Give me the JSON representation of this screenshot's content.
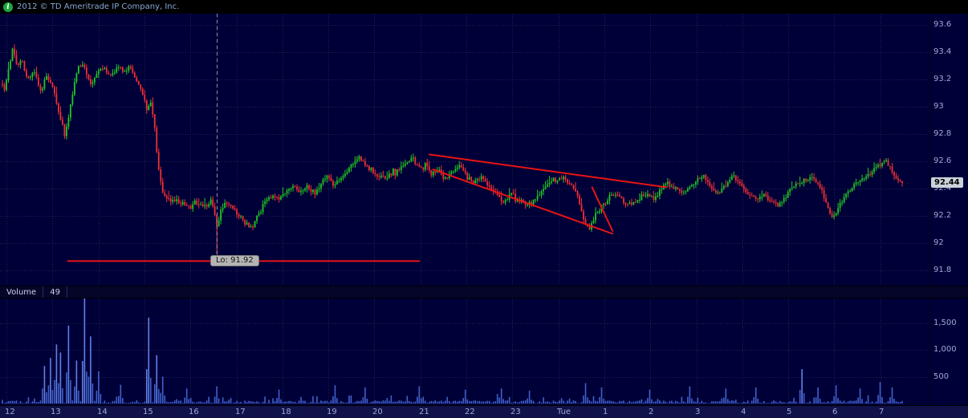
{
  "header": {
    "copyright": "2012 © TD Ameritrade IP Company, Inc.",
    "info_glyph": "i"
  },
  "volume_pane": {
    "label": "Volume",
    "value": 49
  },
  "colors": {
    "background": "#000038",
    "topbar_bg": "#000000",
    "up": "#22c822",
    "down": "#f03030",
    "volume_bar": "#4060cc",
    "volume_bar_bright": "#6080e8",
    "axis_text": "#9fa9d4",
    "grid": "#22224f",
    "drawing_red": "#e61414",
    "marker_dash": "#8890a0",
    "low_badge_bg": "#b4b4b4",
    "last_badge_bg": "#ccd2da",
    "info_green": "#1fa53f"
  },
  "chart_data": {
    "type": "candlestick",
    "title": "",
    "x_axis_labels": [
      "12",
      "13",
      "14",
      "15",
      "16",
      "17",
      "18",
      "19",
      "20",
      "21",
      "22",
      "23",
      "Tue",
      "1",
      "2",
      "3",
      "4",
      "5",
      "6",
      "7"
    ],
    "y_axis": {
      "ticks": [
        {
          "label": "93.6",
          "value": 93.6
        },
        {
          "label": "93.4",
          "value": 93.4
        },
        {
          "label": "93.2",
          "value": 93.2
        },
        {
          "label": "93",
          "value": 93.0
        },
        {
          "label": "92.8",
          "value": 92.8
        },
        {
          "label": "92.6",
          "value": 92.6
        },
        {
          "label": "92.4",
          "value": 92.4
        },
        {
          "label": "92.2",
          "value": 92.2
        },
        {
          "label": "92",
          "value": 92.0
        },
        {
          "label": "91.8",
          "value": 91.8
        }
      ],
      "range": [
        91.69,
        93.68
      ]
    },
    "volume_axis": {
      "ticks": [
        {
          "label": "1,500",
          "value": 1500
        },
        {
          "label": "1,000",
          "value": 1000
        },
        {
          "label": "500",
          "value": 500
        }
      ]
    },
    "last_price": 92.44,
    "last_volume": 49,
    "session_low": 91.92,
    "candle_count": 450,
    "price_anchors": [
      [
        0.0,
        93.22
      ],
      [
        0.005,
        93.12
      ],
      [
        0.01,
        93.3
      ],
      [
        0.014,
        93.44
      ],
      [
        0.018,
        93.3
      ],
      [
        0.023,
        93.34
      ],
      [
        0.03,
        93.2
      ],
      [
        0.037,
        93.26
      ],
      [
        0.043,
        93.12
      ],
      [
        0.05,
        93.22
      ],
      [
        0.057,
        93.14
      ],
      [
        0.063,
        92.96
      ],
      [
        0.07,
        92.78
      ],
      [
        0.076,
        93.02
      ],
      [
        0.083,
        93.28
      ],
      [
        0.09,
        93.3
      ],
      [
        0.097,
        93.16
      ],
      [
        0.104,
        93.24
      ],
      [
        0.112,
        93.28
      ],
      [
        0.12,
        93.22
      ],
      [
        0.127,
        93.3
      ],
      [
        0.134,
        93.24
      ],
      [
        0.14,
        93.3
      ],
      [
        0.147,
        93.18
      ],
      [
        0.153,
        93.1
      ],
      [
        0.158,
        92.98
      ],
      [
        0.162,
        93.04
      ],
      [
        0.166,
        92.88
      ],
      [
        0.17,
        92.56
      ],
      [
        0.175,
        92.38
      ],
      [
        0.181,
        92.3
      ],
      [
        0.19,
        92.32
      ],
      [
        0.2,
        92.26
      ],
      [
        0.21,
        92.3
      ],
      [
        0.22,
        92.27
      ],
      [
        0.228,
        92.3
      ],
      [
        0.234,
        92.1
      ],
      [
        0.238,
        92.26
      ],
      [
        0.245,
        92.3
      ],
      [
        0.252,
        92.26
      ],
      [
        0.258,
        92.18
      ],
      [
        0.265,
        92.14
      ],
      [
        0.272,
        92.12
      ],
      [
        0.278,
        92.22
      ],
      [
        0.285,
        92.3
      ],
      [
        0.292,
        92.34
      ],
      [
        0.3,
        92.32
      ],
      [
        0.308,
        92.38
      ],
      [
        0.315,
        92.42
      ],
      [
        0.322,
        92.36
      ],
      [
        0.33,
        92.42
      ],
      [
        0.337,
        92.36
      ],
      [
        0.344,
        92.42
      ],
      [
        0.352,
        92.5
      ],
      [
        0.358,
        92.42
      ],
      [
        0.365,
        92.46
      ],
      [
        0.372,
        92.52
      ],
      [
        0.38,
        92.58
      ],
      [
        0.388,
        92.62
      ],
      [
        0.395,
        92.56
      ],
      [
        0.403,
        92.5
      ],
      [
        0.412,
        92.48
      ],
      [
        0.42,
        92.5
      ],
      [
        0.428,
        92.54
      ],
      [
        0.436,
        92.58
      ],
      [
        0.444,
        92.62
      ],
      [
        0.452,
        92.54
      ],
      [
        0.458,
        92.58
      ],
      [
        0.464,
        92.5
      ],
      [
        0.472,
        92.54
      ],
      [
        0.478,
        92.46
      ],
      [
        0.486,
        92.52
      ],
      [
        0.494,
        92.56
      ],
      [
        0.502,
        92.5
      ],
      [
        0.51,
        92.44
      ],
      [
        0.518,
        92.48
      ],
      [
        0.526,
        92.42
      ],
      [
        0.534,
        92.36
      ],
      [
        0.542,
        92.3
      ],
      [
        0.55,
        92.36
      ],
      [
        0.558,
        92.32
      ],
      [
        0.566,
        92.28
      ],
      [
        0.574,
        92.3
      ],
      [
        0.582,
        92.38
      ],
      [
        0.59,
        92.44
      ],
      [
        0.598,
        92.46
      ],
      [
        0.606,
        92.48
      ],
      [
        0.612,
        92.44
      ],
      [
        0.618,
        92.4
      ],
      [
        0.624,
        92.28
      ],
      [
        0.629,
        92.16
      ],
      [
        0.634,
        92.11
      ],
      [
        0.64,
        92.2
      ],
      [
        0.648,
        92.28
      ],
      [
        0.656,
        92.34
      ],
      [
        0.664,
        92.36
      ],
      [
        0.672,
        92.3
      ],
      [
        0.68,
        92.28
      ],
      [
        0.688,
        92.34
      ],
      [
        0.696,
        92.36
      ],
      [
        0.704,
        92.32
      ],
      [
        0.712,
        92.4
      ],
      [
        0.718,
        92.46
      ],
      [
        0.726,
        92.4
      ],
      [
        0.734,
        92.36
      ],
      [
        0.742,
        92.4
      ],
      [
        0.75,
        92.46
      ],
      [
        0.757,
        92.5
      ],
      [
        0.764,
        92.42
      ],
      [
        0.772,
        92.36
      ],
      [
        0.78,
        92.42
      ],
      [
        0.789,
        92.5
      ],
      [
        0.797,
        92.44
      ],
      [
        0.805,
        92.36
      ],
      [
        0.813,
        92.32
      ],
      [
        0.821,
        92.36
      ],
      [
        0.829,
        92.3
      ],
      [
        0.838,
        92.28
      ],
      [
        0.848,
        92.38
      ],
      [
        0.857,
        92.44
      ],
      [
        0.866,
        92.46
      ],
      [
        0.875,
        92.48
      ],
      [
        0.883,
        92.4
      ],
      [
        0.89,
        92.28
      ],
      [
        0.896,
        92.18
      ],
      [
        0.903,
        92.28
      ],
      [
        0.911,
        92.36
      ],
      [
        0.919,
        92.44
      ],
      [
        0.927,
        92.46
      ],
      [
        0.934,
        92.5
      ],
      [
        0.941,
        92.54
      ],
      [
        0.948,
        92.58
      ],
      [
        0.954,
        92.6
      ],
      [
        0.96,
        92.52
      ],
      [
        0.966,
        92.47
      ],
      [
        0.972,
        92.44
      ]
    ],
    "volume_spikes": [
      [
        0.048,
        700
      ],
      [
        0.054,
        850
      ],
      [
        0.06,
        1100
      ],
      [
        0.066,
        950
      ],
      [
        0.074,
        1450
      ],
      [
        0.082,
        800
      ],
      [
        0.09,
        1980
      ],
      [
        0.098,
        1250
      ],
      [
        0.106,
        600
      ],
      [
        0.13,
        350
      ],
      [
        0.16,
        1600
      ],
      [
        0.168,
        900
      ],
      [
        0.175,
        500
      ],
      [
        0.2,
        280
      ],
      [
        0.234,
        320
      ],
      [
        0.3,
        260
      ],
      [
        0.36,
        340
      ],
      [
        0.392,
        300
      ],
      [
        0.452,
        320
      ],
      [
        0.5,
        260
      ],
      [
        0.54,
        280
      ],
      [
        0.57,
        240
      ],
      [
        0.63,
        380
      ],
      [
        0.648,
        300
      ],
      [
        0.7,
        260
      ],
      [
        0.742,
        320
      ],
      [
        0.78,
        280
      ],
      [
        0.813,
        300
      ],
      [
        0.862,
        640
      ],
      [
        0.88,
        300
      ],
      [
        0.9,
        340
      ],
      [
        0.925,
        280
      ],
      [
        0.948,
        400
      ],
      [
        0.96,
        300
      ]
    ],
    "annotations": {
      "low_label": "Lo: 91.92",
      "low_marker_x": 0.2332,
      "low_line": {
        "x1": 0.073,
        "x2": 0.451,
        "price": 91.87
      },
      "trendlines": [
        {
          "x1": 0.462,
          "p1": 92.65,
          "x2": 0.717,
          "p2": 92.41
        },
        {
          "x1": 0.466,
          "p1": 92.54,
          "x2": 0.659,
          "p2": 92.07
        },
        {
          "x1": 0.637,
          "p1": 92.41,
          "x2": 0.659,
          "p2": 92.09
        }
      ]
    }
  }
}
